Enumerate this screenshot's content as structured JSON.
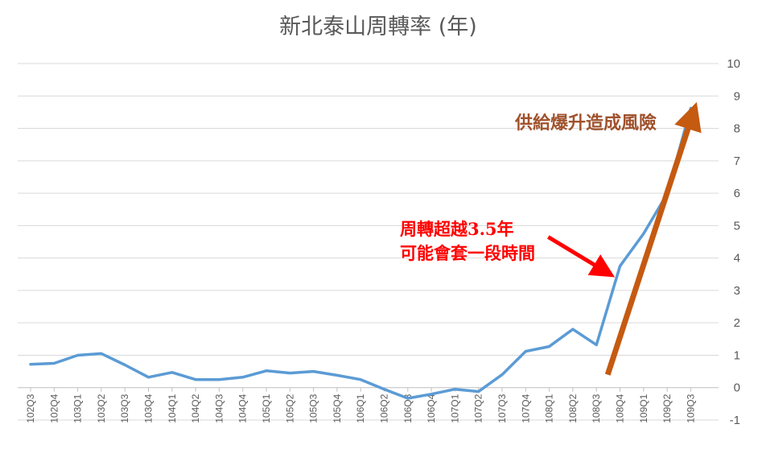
{
  "chart_data": {
    "type": "line",
    "title": "新北泰山周轉率 (年)",
    "categories": [
      "102Q3",
      "102Q4",
      "103Q1",
      "103Q2",
      "103Q3",
      "103Q4",
      "104Q1",
      "104Q2",
      "104Q3",
      "104Q4",
      "105Q1",
      "105Q2",
      "105Q3",
      "105Q4",
      "106Q1",
      "106Q2",
      "106Q3",
      "106Q4",
      "107Q1",
      "107Q2",
      "107Q3",
      "107Q4",
      "108Q1",
      "108Q2",
      "108Q3",
      "108Q4",
      "109Q1",
      "109Q2",
      "109Q3"
    ],
    "series": [
      {
        "values": [
          0.72,
          0.75,
          1.0,
          1.05,
          0.7,
          0.32,
          0.47,
          0.25,
          0.25,
          0.32,
          0.52,
          0.45,
          0.5,
          0.38,
          0.25,
          -0.05,
          -0.33,
          -0.2,
          -0.05,
          -0.12,
          0.4,
          1.12,
          1.27,
          1.8,
          1.32,
          3.75,
          4.75,
          5.98,
          8.62
        ],
        "color": "#5b9bd5"
      }
    ],
    "ylim": [
      -1,
      10
    ],
    "yticks": [
      -1,
      0,
      1,
      2,
      3,
      4,
      5,
      6,
      7,
      8,
      9,
      10
    ],
    "grid": true,
    "xlabel": "",
    "ylabel": "",
    "annotations": [
      {
        "text": [
          "周轉超越3.5年",
          "可能會套一段時間"
        ],
        "color": "#ff0000",
        "arrow_from": {
          "x": "107Q4",
          "y": 4.65
        },
        "arrow_to": {
          "x": "108Q3",
          "y": 3.6
        }
      },
      {
        "text": [
          "供給爆升造成風險"
        ],
        "color": "#c55a11",
        "arrow_from": {
          "x": "108Q3",
          "y": 0.4
        },
        "arrow_to": {
          "x": "109Q3",
          "y": 8.4
        }
      }
    ]
  }
}
